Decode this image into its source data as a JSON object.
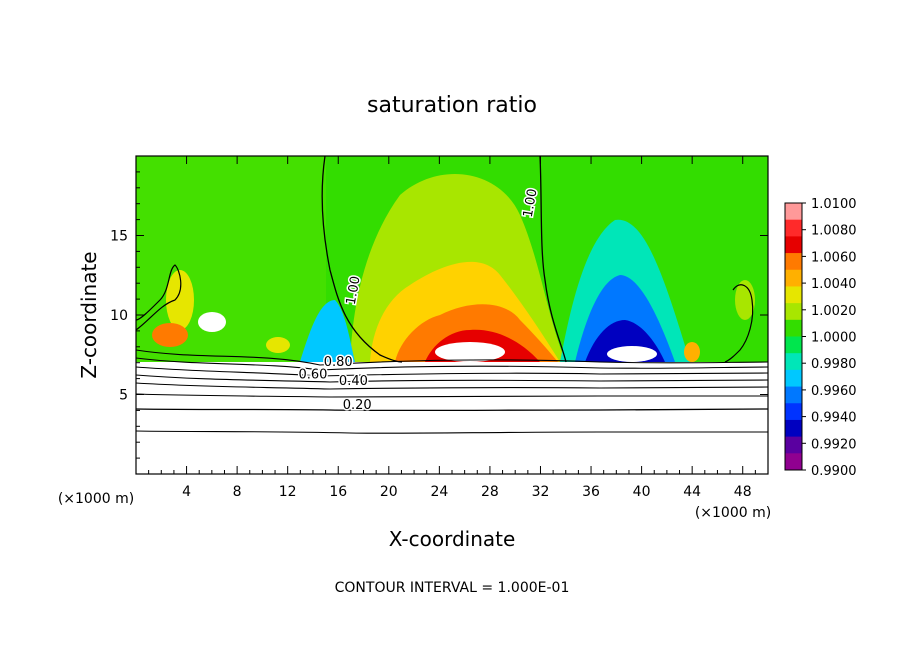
{
  "chart_data": {
    "type": "heatmap",
    "title": "saturation ratio",
    "xlabel": "X-coordinate",
    "ylabel": "Z-coordinate",
    "x_unit": "(×1000 m)",
    "xlim": [
      0,
      50
    ],
    "ylim": [
      0,
      20
    ],
    "x_ticks": [
      4,
      8,
      12,
      16,
      20,
      24,
      28,
      32,
      36,
      40,
      44,
      48
    ],
    "y_ticks": [
      5,
      10,
      15
    ],
    "colorbar": {
      "levels": [
        "1.0100",
        "1.0080",
        "1.0060",
        "1.0040",
        "1.0020",
        "1.0000",
        "0.9980",
        "0.9960",
        "0.9940",
        "0.9920",
        "0.9900"
      ],
      "range": [
        0.99,
        1.01
      ],
      "colors": [
        "#ff9999",
        "#ff2a2a",
        "#e60000",
        "#ff7a00",
        "#ffb000",
        "#e6e600",
        "#a8e600",
        "#33dd00",
        "#00e64d",
        "#00e6b8",
        "#00c8ff",
        "#0078ff",
        "#0033ff",
        "#0000c0",
        "#5a00a0",
        "#900090"
      ]
    },
    "contour_labels": [
      {
        "text": "1.00",
        "x": 17.5,
        "z": 11.5
      },
      {
        "text": "1.00",
        "x": 31.5,
        "z": 17.0
      },
      {
        "text": "0.80",
        "x": 16.0,
        "z": 6.8
      },
      {
        "text": "0.60",
        "x": 14.0,
        "z": 6.0
      },
      {
        "text": "0.40",
        "x": 17.2,
        "z": 5.6
      },
      {
        "text": "0.20",
        "x": 17.5,
        "z": 4.1
      }
    ],
    "footer": "CONTOUR INTERVAL = 1.000E-01"
  }
}
